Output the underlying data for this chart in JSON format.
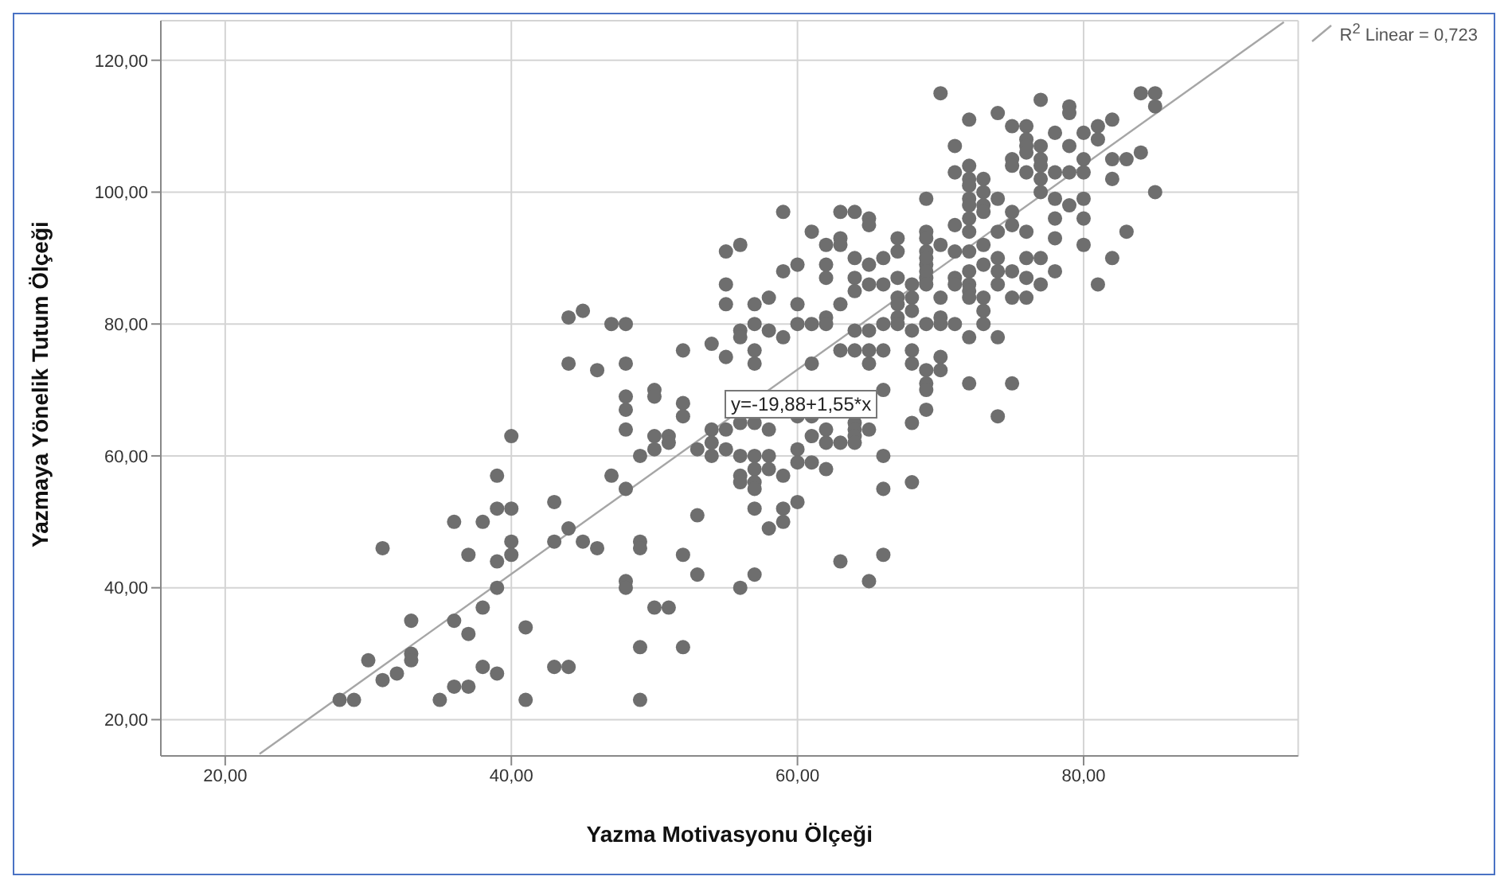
{
  "chart_data": {
    "type": "scatter",
    "xlabel": "Yazma Motivasyonu Ölçeği",
    "ylabel": "Yazmaya Yönelik Tutum Ölçeği",
    "xlim": [
      15.5,
      95
    ],
    "ylim": [
      14.5,
      126
    ],
    "xticks": [
      {
        "value": 20,
        "label": "20,00"
      },
      {
        "value": 40,
        "label": "40,00"
      },
      {
        "value": 60,
        "label": "60,00"
      },
      {
        "value": 80,
        "label": "80,00"
      }
    ],
    "yticks": [
      {
        "value": 20,
        "label": "20,00"
      },
      {
        "value": 40,
        "label": "40,00"
      },
      {
        "value": 60,
        "label": "60,00"
      },
      {
        "value": 80,
        "label": "80,00"
      },
      {
        "value": 100,
        "label": "100,00"
      },
      {
        "value": 120,
        "label": "120,00"
      }
    ],
    "grid": true,
    "legend": "top right",
    "marker": "circle",
    "annotations": [
      "y=-19,88+1,55*x"
    ],
    "series": [
      {
        "color": "#6e6e6e",
        "x": [
          28,
          29,
          30,
          31,
          31,
          32,
          33,
          33,
          33,
          35,
          36,
          37,
          36,
          37,
          36,
          37,
          38,
          38,
          38,
          39,
          39,
          39,
          39,
          39,
          40,
          40,
          40,
          40,
          41,
          41,
          43,
          43,
          43,
          44,
          44,
          45,
          46,
          47,
          48,
          48,
          48,
          48,
          49,
          49,
          48,
          48,
          49,
          49,
          50,
          51,
          50,
          50,
          49,
          50,
          44,
          45,
          47,
          44,
          46,
          48,
          59,
          61,
          63,
          64,
          65,
          65,
          55,
          56,
          55,
          55,
          59,
          60,
          57,
          58,
          60,
          62,
          62,
          62,
          63,
          63,
          64,
          64,
          64,
          65,
          65,
          66,
          63,
          62,
          62,
          61,
          60,
          58,
          59,
          57,
          56,
          56,
          48,
          52,
          54,
          55,
          57,
          57,
          61,
          63,
          64,
          64,
          65,
          65,
          65,
          66,
          50,
          52,
          52,
          51,
          51,
          53,
          54,
          54,
          54,
          55,
          55,
          56,
          57,
          58,
          56,
          57,
          57,
          58,
          58,
          59,
          56,
          56,
          57,
          57,
          57,
          58,
          59,
          59,
          60,
          60,
          60,
          60,
          61,
          61,
          61,
          62,
          62,
          62,
          63,
          64,
          64,
          64,
          64,
          65,
          66,
          66,
          66,
          68,
          68,
          69,
          70,
          69,
          68,
          68,
          68,
          52,
          53,
          53,
          56,
          57,
          63,
          65,
          66,
          68,
          68,
          68,
          67,
          67,
          67,
          67,
          67,
          69,
          69,
          69,
          70,
          71,
          71,
          71,
          71,
          70,
          66,
          67,
          67,
          66,
          52,
          70,
          72,
          74,
          77,
          79,
          79,
          75,
          76,
          76,
          76,
          76,
          77,
          77,
          77,
          77,
          77,
          78,
          79,
          80,
          81,
          81,
          82,
          84,
          85,
          85,
          71,
          71,
          72,
          72,
          72,
          72,
          72,
          73,
          73,
          73,
          73,
          74,
          75,
          75,
          76,
          78,
          79,
          80,
          80,
          78,
          78,
          78,
          79,
          80,
          80,
          80,
          82,
          83,
          84,
          82,
          85,
          83,
          82,
          81,
          69,
          69,
          69,
          69,
          69,
          69,
          70,
          71,
          72,
          72,
          72,
          72,
          72,
          72,
          72,
          73,
          73,
          74,
          74,
          74,
          74,
          75,
          75,
          75,
          75,
          76,
          76,
          76,
          76,
          77,
          77,
          78,
          69,
          70,
          73,
          73,
          73,
          72,
          74,
          70,
          69,
          69,
          72,
          75,
          74
        ],
        "values": [
          23,
          23,
          29,
          26,
          46,
          27,
          35,
          30,
          29,
          23,
          25,
          25,
          35,
          33,
          50,
          45,
          50,
          37,
          28,
          27,
          40,
          44,
          52,
          57,
          52,
          47,
          45,
          63,
          34,
          23,
          53,
          47,
          28,
          49,
          28,
          47,
          46,
          57,
          69,
          67,
          64,
          55,
          47,
          46,
          41,
          40,
          31,
          23,
          37,
          37,
          63,
          61,
          60,
          70,
          81,
          82,
          80,
          74,
          73,
          74,
          97,
          94,
          97,
          97,
          96,
          95,
          91,
          92,
          86,
          83,
          88,
          89,
          83,
          84,
          83,
          92,
          89,
          87,
          93,
          92,
          90,
          87,
          85,
          89,
          86,
          90,
          83,
          81,
          80,
          80,
          80,
          79,
          78,
          80,
          79,
          78,
          80,
          76,
          77,
          75,
          76,
          74,
          74,
          76,
          76,
          79,
          79,
          76,
          74,
          76,
          69,
          68,
          66,
          63,
          62,
          61,
          64,
          62,
          60,
          64,
          61,
          65,
          65,
          64,
          60,
          60,
          58,
          60,
          58,
          57,
          57,
          56,
          56,
          55,
          52,
          49,
          52,
          50,
          53,
          61,
          59,
          66,
          66,
          63,
          59,
          64,
          62,
          58,
          62,
          65,
          64,
          63,
          62,
          64,
          70,
          60,
          55,
          56,
          65,
          73,
          75,
          67,
          79,
          76,
          74,
          45,
          42,
          51,
          40,
          42,
          44,
          41,
          45,
          86,
          84,
          82,
          87,
          84,
          83,
          81,
          80,
          91,
          89,
          87,
          84,
          95,
          87,
          86,
          80,
          80,
          86,
          93,
          91,
          80,
          31,
          115,
          111,
          112,
          114,
          113,
          112,
          110,
          110,
          108,
          107,
          106,
          107,
          105,
          104,
          102,
          100,
          109,
          107,
          109,
          110,
          108,
          111,
          115,
          115,
          113,
          107,
          103,
          104,
          102,
          101,
          99,
          98,
          102,
          100,
          98,
          97,
          99,
          105,
          104,
          103,
          103,
          103,
          103,
          105,
          99,
          96,
          93,
          98,
          99,
          96,
          92,
          105,
          105,
          106,
          102,
          100,
          94,
          90,
          86,
          99,
          94,
          93,
          90,
          88,
          86,
          92,
          91,
          96,
          94,
          91,
          88,
          86,
          85,
          84,
          92,
          89,
          94,
          90,
          88,
          86,
          97,
          95,
          88,
          84,
          94,
          90,
          87,
          84,
          90,
          86,
          88,
          80,
          81,
          84,
          82,
          80,
          78,
          78,
          73,
          71,
          70,
          71,
          71,
          66
        ]
      },
      {
        "type": "line",
        "name": "R$^{2}$ Linear = 0,723",
        "color": "#a6a6a6",
        "marker": "none",
        "x": [
          22.4,
          94
        ],
        "values": [
          14.8,
          125.8
        ]
      }
    ]
  }
}
